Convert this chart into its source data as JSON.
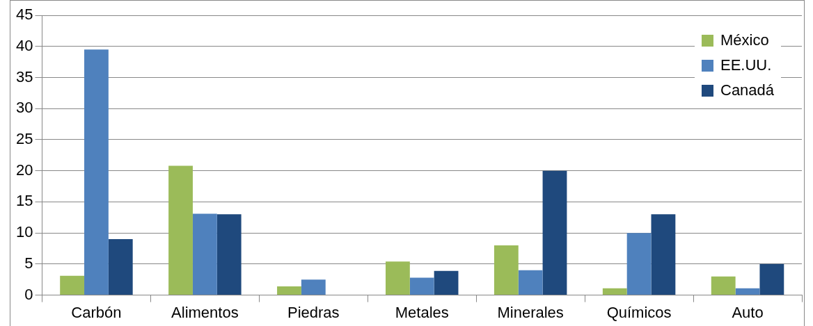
{
  "chart_data": {
    "type": "bar",
    "categories": [
      "Carbón",
      "Alimentos",
      "Piedras",
      "Metales",
      "Minerales",
      "Químicos",
      "Auto"
    ],
    "series": [
      {
        "name": "México",
        "color": "#9bbb59",
        "values": [
          3.1,
          20.8,
          1.4,
          5.4,
          8.0,
          1.1,
          3.0
        ]
      },
      {
        "name": "EE.UU.",
        "color": "#4f81bd",
        "values": [
          39.5,
          13.1,
          2.5,
          2.8,
          4.0,
          10,
          1.1
        ]
      },
      {
        "name": "Canadá",
        "color": "#1f497d",
        "values": [
          9,
          13,
          null,
          3.9,
          20,
          13,
          5
        ]
      }
    ],
    "ylim": [
      0,
      45
    ],
    "yticks": [
      0,
      5,
      10,
      15,
      20,
      25,
      30,
      35,
      40,
      45
    ],
    "grid": "y",
    "legend": "top right"
  }
}
